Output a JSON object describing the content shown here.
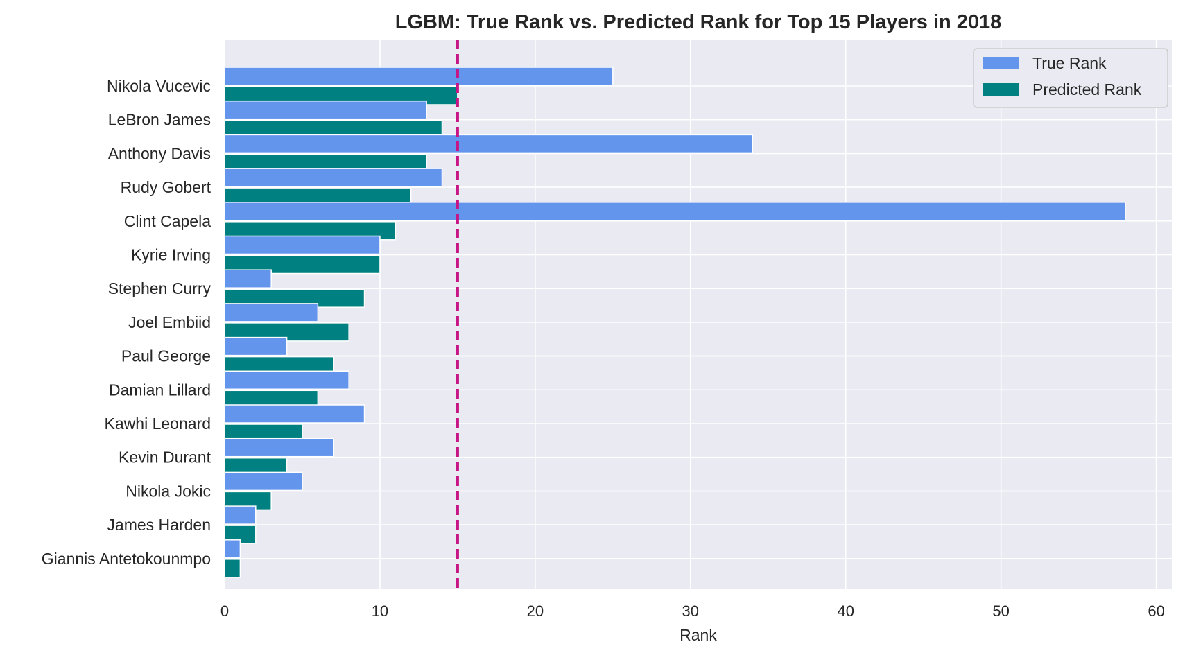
{
  "chart_data": {
    "type": "bar",
    "orientation": "horizontal",
    "title": "LGBM: True Rank vs. Predicted Rank for Top 15 Players in 2018",
    "xlabel": "Rank",
    "ylabel": "",
    "xlim": [
      0,
      61
    ],
    "xticks": [
      "0",
      "10",
      "20",
      "30",
      "40",
      "50",
      "60"
    ],
    "categories": [
      "Nikola Vucevic",
      "LeBron James",
      "Anthony Davis",
      "Rudy Gobert",
      "Clint Capela",
      "Kyrie Irving",
      "Stephen Curry",
      "Joel Embiid",
      "Paul George",
      "Damian Lillard",
      "Kawhi Leonard",
      "Kevin Durant",
      "Nikola Jokic",
      "James Harden",
      "Giannis Antetokounmpo"
    ],
    "series": [
      {
        "name": "True Rank",
        "color": "#6495ed",
        "values": [
          25,
          13,
          34,
          14,
          58,
          10,
          3,
          6,
          4,
          8,
          9,
          7,
          5,
          2,
          1
        ]
      },
      {
        "name": "Predicted Rank",
        "color": "#008080",
        "values": [
          15,
          14,
          13,
          12,
          11,
          10,
          9,
          8,
          7,
          6,
          5,
          4,
          3,
          2,
          1
        ]
      }
    ],
    "reference_line": {
      "x": 15,
      "color": "#c71585",
      "style": "dashed"
    },
    "grid": true,
    "legend": "top-right",
    "background": "#eaeaf2"
  }
}
